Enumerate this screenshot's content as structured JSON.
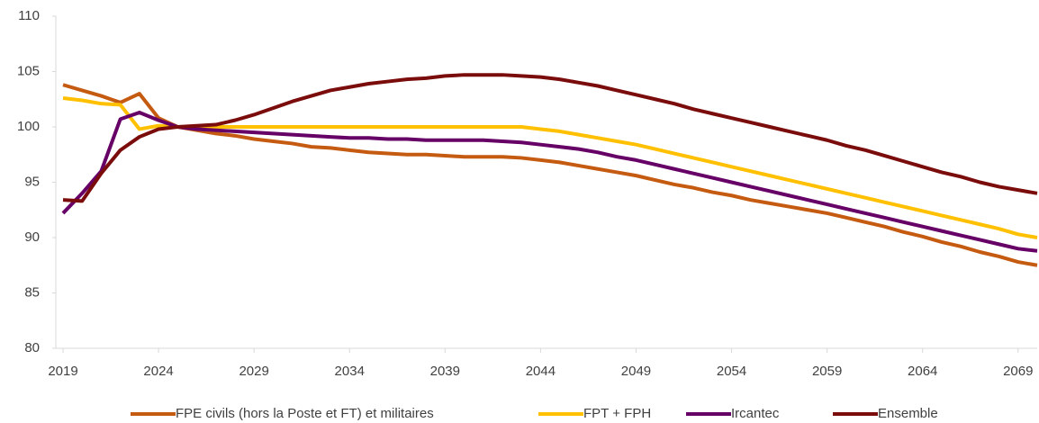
{
  "chart_data": {
    "type": "line",
    "x": [
      2019,
      2020,
      2021,
      2022,
      2023,
      2024,
      2025,
      2026,
      2027,
      2028,
      2029,
      2030,
      2031,
      2032,
      2033,
      2034,
      2035,
      2036,
      2037,
      2038,
      2039,
      2040,
      2041,
      2042,
      2043,
      2044,
      2045,
      2046,
      2047,
      2048,
      2049,
      2050,
      2051,
      2052,
      2053,
      2054,
      2055,
      2056,
      2057,
      2058,
      2059,
      2060,
      2061,
      2062,
      2063,
      2064,
      2065,
      2066,
      2067,
      2068,
      2069,
      2070
    ],
    "series": [
      {
        "name": "FPE civils (hors la Poste et FT) et militaires",
        "color": "#c55a11",
        "values": [
          103.8,
          103.3,
          102.8,
          102.2,
          103.0,
          100.8,
          100.0,
          99.7,
          99.4,
          99.2,
          98.9,
          98.7,
          98.5,
          98.2,
          98.1,
          97.9,
          97.7,
          97.6,
          97.5,
          97.5,
          97.4,
          97.3,
          97.3,
          97.3,
          97.2,
          97.0,
          96.8,
          96.5,
          96.2,
          95.9,
          95.6,
          95.2,
          94.8,
          94.5,
          94.1,
          93.8,
          93.4,
          93.1,
          92.8,
          92.5,
          92.2,
          91.8,
          91.4,
          91.0,
          90.5,
          90.1,
          89.6,
          89.2,
          88.7,
          88.3,
          87.8,
          87.5
        ]
      },
      {
        "name": "FPT + FPH",
        "color": "#ffc000",
        "values": [
          102.6,
          102.4,
          102.1,
          102.0,
          99.8,
          100.1,
          100.0,
          100.0,
          100.0,
          100.0,
          100.0,
          100.0,
          100.0,
          100.0,
          100.0,
          100.0,
          100.0,
          100.0,
          100.0,
          100.0,
          100.0,
          100.0,
          100.0,
          100.0,
          100.0,
          99.8,
          99.6,
          99.3,
          99.0,
          98.7,
          98.4,
          98.0,
          97.6,
          97.2,
          96.8,
          96.4,
          96.0,
          95.6,
          95.2,
          94.8,
          94.4,
          94.0,
          93.6,
          93.2,
          92.8,
          92.4,
          92.0,
          91.6,
          91.2,
          90.8,
          90.3,
          90.0
        ]
      },
      {
        "name": "Ircantec",
        "color": "#660066",
        "values": [
          92.2,
          94.0,
          96.0,
          100.7,
          101.3,
          100.6,
          100.0,
          99.8,
          99.7,
          99.6,
          99.5,
          99.4,
          99.3,
          99.2,
          99.1,
          99.0,
          99.0,
          98.9,
          98.9,
          98.8,
          98.8,
          98.8,
          98.8,
          98.7,
          98.6,
          98.4,
          98.2,
          98.0,
          97.7,
          97.3,
          97.0,
          96.6,
          96.2,
          95.8,
          95.4,
          95.0,
          94.6,
          94.2,
          93.8,
          93.4,
          93.0,
          92.6,
          92.2,
          91.8,
          91.4,
          91.0,
          90.6,
          90.2,
          89.8,
          89.4,
          89.0,
          88.8
        ]
      },
      {
        "name": "Ensemble",
        "color": "#7b0c0c",
        "values": [
          93.4,
          93.3,
          95.8,
          97.9,
          99.1,
          99.8,
          100.0,
          100.1,
          100.2,
          100.6,
          101.1,
          101.7,
          102.3,
          102.8,
          103.3,
          103.6,
          103.9,
          104.1,
          104.3,
          104.4,
          104.6,
          104.7,
          104.7,
          104.7,
          104.6,
          104.5,
          104.3,
          104.0,
          103.7,
          103.3,
          102.9,
          102.5,
          102.1,
          101.6,
          101.2,
          100.8,
          100.4,
          100.0,
          99.6,
          99.2,
          98.8,
          98.3,
          97.9,
          97.4,
          96.9,
          96.4,
          95.9,
          95.5,
          95.0,
          94.6,
          94.3,
          94.0
        ]
      }
    ],
    "xlim": [
      2019,
      2070
    ],
    "xticks": [
      2019,
      2024,
      2029,
      2034,
      2039,
      2044,
      2049,
      2054,
      2059,
      2064,
      2069
    ],
    "ylim": [
      80,
      110
    ],
    "yticks": [
      80,
      85,
      90,
      95,
      100,
      105,
      110
    ]
  }
}
